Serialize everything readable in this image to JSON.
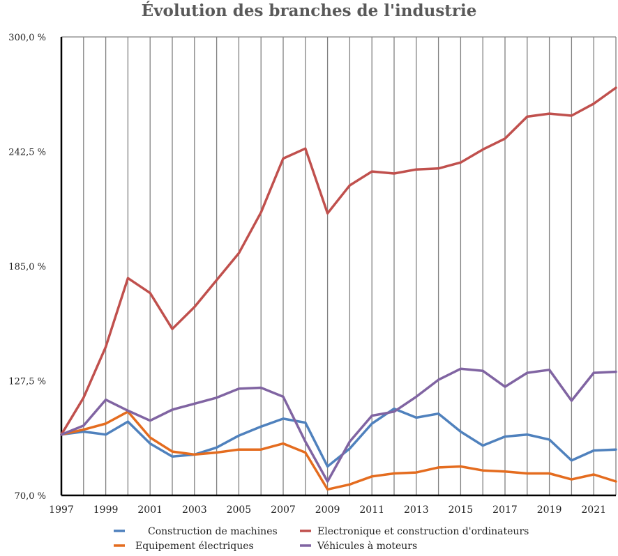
{
  "chart_data": {
    "type": "line",
    "title": "Évolution des branches de l'industrie",
    "xlabel": "",
    "ylabel": "",
    "ylim": [
      70,
      300
    ],
    "y_ticks": [
      "300,0 %",
      "242,5 %",
      "185,0 %",
      "127,5 %",
      "70,0 %"
    ],
    "y_tick_values": [
      300,
      242.5,
      185,
      127.5,
      70
    ],
    "x": [
      1997,
      1998,
      1999,
      2000,
      2001,
      2002,
      2003,
      2004,
      2005,
      2006,
      2007,
      2008,
      2009,
      2010,
      2011,
      2012,
      2013,
      2014,
      2015,
      2016,
      2017,
      2018,
      2019,
      2020,
      2021,
      2022
    ],
    "x_ticks": [
      "1997",
      "1999",
      "2001",
      "2003",
      "2005",
      "2007",
      "2009",
      "2011",
      "2013",
      "2015",
      "2017",
      "2019",
      "2021"
    ],
    "x_tick_values": [
      1997,
      1999,
      2001,
      2003,
      2005,
      2007,
      2009,
      2011,
      2013,
      2015,
      2017,
      2019,
      2021
    ],
    "grid": "vertical",
    "legend_position": "bottom",
    "series": [
      {
        "name": "Construction de machines",
        "color": "#4f81bd",
        "values": [
          100.5,
          102,
          100.5,
          107,
          96,
          89.5,
          90.5,
          94,
          100,
          104.5,
          108.5,
          106.5,
          84.5,
          93.5,
          106,
          113.5,
          109,
          111,
          102,
          95,
          99.5,
          100.5,
          98,
          87.5,
          92.5,
          93
        ]
      },
      {
        "name": "Electronique et construction d'ordinateurs",
        "color": "#c0504d",
        "values": [
          100.5,
          119,
          144.5,
          179,
          171.5,
          153.5,
          164.5,
          178,
          191.5,
          212,
          239,
          244,
          211.5,
          225.5,
          232.5,
          231.5,
          233.5,
          234,
          237,
          243.5,
          249,
          260,
          261.5,
          260.5,
          266.5,
          274.5
        ]
      },
      {
        "name": "Equipement électriques",
        "color": "#e46c1f",
        "values": [
          100.5,
          103,
          106,
          112,
          99,
          92,
          90.5,
          91.5,
          93,
          93,
          96,
          91.5,
          73,
          75.5,
          79.5,
          81,
          81.5,
          84,
          84.5,
          82.5,
          82,
          81,
          81,
          78,
          80.5,
          77
        ]
      },
      {
        "name": "Véhicules à moteurs",
        "color": "#8064a2",
        "values": [
          100.5,
          105,
          118,
          112.5,
          107.5,
          113,
          116,
          119,
          123.5,
          124,
          119.5,
          97,
          77,
          97,
          110,
          112,
          119.5,
          128,
          133.5,
          132.5,
          124.5,
          131.5,
          133,
          117.5,
          131.5,
          132
        ]
      }
    ]
  }
}
